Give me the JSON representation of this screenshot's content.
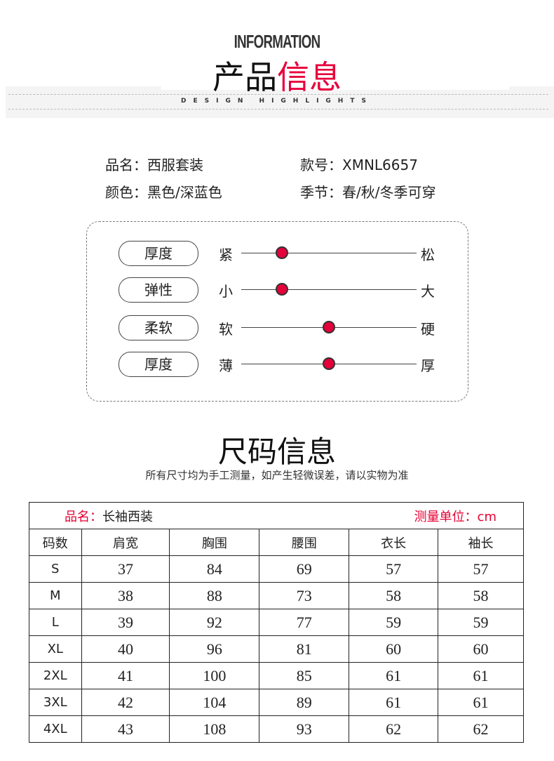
{
  "header": {
    "en_title": "INFORMATION",
    "cn_title_black": "产品",
    "cn_title_red": "信息",
    "subtitle": "DESIGN HIGHLIGHTS"
  },
  "info": {
    "name_label": "品名：西服套装",
    "code_label": "款号：XMNL6657",
    "color_label": "颜色：黑色/深蓝色",
    "season_label": "季节：春/秋/冬季可穿"
  },
  "attributes": [
    {
      "name": "厚度",
      "left": "紧",
      "right": "松",
      "level": 0.23
    },
    {
      "name": "弹性",
      "left": "小",
      "right": "大",
      "level": 0.23
    },
    {
      "name": "柔软",
      "left": "软",
      "right": "硬",
      "level": 0.5
    },
    {
      "name": "厚度",
      "left": "薄",
      "right": "厚",
      "level": 0.5
    }
  ],
  "accent_color": "#e4003a",
  "size": {
    "title": "尺码信息",
    "note": "所有尺寸均为手工测量，如产生轻微误差，请以实物为准",
    "product_label": "品名：",
    "product_name": "长袖西装",
    "unit_label": "测量单位：cm",
    "headers": [
      "码数",
      "肩宽",
      "胸围",
      "腰围",
      "衣长",
      "袖长"
    ],
    "rows": [
      [
        "S",
        "37",
        "84",
        "69",
        "57",
        "57"
      ],
      [
        "M",
        "38",
        "88",
        "73",
        "58",
        "58"
      ],
      [
        "L",
        "39",
        "92",
        "77",
        "59",
        "59"
      ],
      [
        "XL",
        "40",
        "96",
        "81",
        "60",
        "60"
      ],
      [
        "2XL",
        "41",
        "100",
        "85",
        "61",
        "61"
      ],
      [
        "3XL",
        "42",
        "104",
        "89",
        "61",
        "61"
      ],
      [
        "4XL",
        "43",
        "108",
        "93",
        "62",
        "62"
      ]
    ]
  }
}
